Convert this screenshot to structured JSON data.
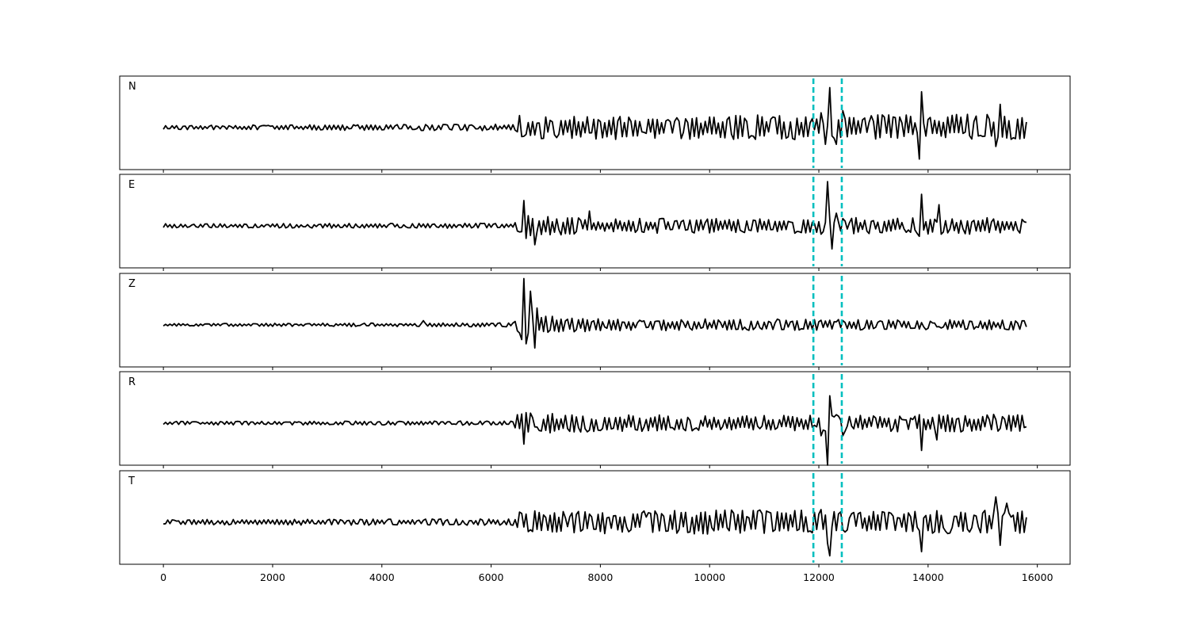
{
  "chart_data": {
    "type": "line",
    "title": "",
    "xlabel": "",
    "ylabel": "",
    "xlim": [
      -800,
      16600
    ],
    "xticks": [
      0,
      2000,
      4000,
      6000,
      8000,
      10000,
      12000,
      14000,
      16000
    ],
    "xtick_labels": [
      "0",
      "2000",
      "4000",
      "6000",
      "8000",
      "10000",
      "12000",
      "14000",
      "16000"
    ],
    "grid": false,
    "legend": "none",
    "sample_range": [
      0,
      15800
    ],
    "trace_color": "#000000",
    "marker_color": "#00bfbf",
    "markers": [
      11900,
      12420
    ],
    "panels": [
      {
        "label": "N",
        "ylim": [
          -1.0,
          1.0
        ],
        "noise": [
          [
            0,
            0.05
          ],
          [
            6400,
            0.08
          ],
          [
            6500,
            0.3
          ],
          [
            7200,
            0.26
          ],
          [
            8000,
            0.28
          ],
          [
            11000,
            0.3
          ],
          [
            13000,
            0.3
          ],
          [
            15800,
            0.32
          ]
        ],
        "key_points": [
          [
            11900,
            -0.05
          ],
          [
            12050,
            0.35
          ],
          [
            12100,
            -0.4
          ],
          [
            12150,
            0.05
          ],
          [
            12200,
            0.95
          ],
          [
            12250,
            -0.2
          ],
          [
            12330,
            -0.4
          ],
          [
            12420,
            0.4
          ],
          [
            13820,
            -0.2
          ],
          [
            13850,
            -0.75
          ],
          [
            13880,
            0.85
          ],
          [
            13920,
            0.1
          ],
          [
            15100,
            0.2
          ],
          [
            15250,
            -0.45
          ],
          [
            15330,
            0.55
          ],
          [
            15420,
            -0.25
          ]
        ]
      },
      {
        "label": "E",
        "ylim": [
          -1.0,
          1.0
        ],
        "noise": [
          [
            0,
            0.05
          ],
          [
            6400,
            0.06
          ],
          [
            6500,
            0.25
          ],
          [
            7200,
            0.22
          ],
          [
            8000,
            0.18
          ],
          [
            11000,
            0.18
          ],
          [
            13000,
            0.2
          ],
          [
            15800,
            0.2
          ]
        ],
        "key_points": [
          [
            6580,
            0.6
          ],
          [
            6650,
            -0.3
          ],
          [
            6780,
            -0.45
          ],
          [
            7800,
            0.35
          ],
          [
            11900,
            0.05
          ],
          [
            12050,
            -0.2
          ],
          [
            12150,
            1.05
          ],
          [
            12230,
            -0.55
          ],
          [
            12330,
            0.3
          ],
          [
            13850,
            -0.25
          ],
          [
            13880,
            0.75
          ],
          [
            13930,
            -0.1
          ],
          [
            14180,
            0.5
          ],
          [
            14250,
            -0.2
          ]
        ]
      },
      {
        "label": "Z",
        "ylim": [
          -1.0,
          1.0
        ],
        "noise": [
          [
            0,
            0.03
          ],
          [
            6400,
            0.05
          ],
          [
            6500,
            0.22
          ],
          [
            7200,
            0.2
          ],
          [
            8000,
            0.14
          ],
          [
            11000,
            0.14
          ],
          [
            13000,
            0.12
          ],
          [
            15800,
            0.12
          ]
        ],
        "key_points": [
          [
            4750,
            0.1
          ],
          [
            6550,
            -0.35
          ],
          [
            6580,
            1.1
          ],
          [
            6640,
            -0.45
          ],
          [
            6700,
            0.8
          ],
          [
            6780,
            -0.55
          ],
          [
            6840,
            0.4
          ]
        ]
      },
      {
        "label": "R",
        "ylim": [
          -1.0,
          1.0
        ],
        "noise": [
          [
            0,
            0.04
          ],
          [
            6400,
            0.05
          ],
          [
            6500,
            0.25
          ],
          [
            7200,
            0.25
          ],
          [
            8000,
            0.2
          ],
          [
            11000,
            0.18
          ],
          [
            13000,
            0.2
          ],
          [
            15800,
            0.22
          ]
        ],
        "key_points": [
          [
            6580,
            -0.5
          ],
          [
            6650,
            0.25
          ],
          [
            11900,
            -0.05
          ],
          [
            12050,
            -0.3
          ],
          [
            12140,
            -1.0
          ],
          [
            12200,
            0.65
          ],
          [
            12300,
            0.2
          ],
          [
            12420,
            -0.3
          ],
          [
            13850,
            0.2
          ],
          [
            13880,
            -0.65
          ],
          [
            13930,
            0.1
          ],
          [
            14170,
            -0.4
          ]
        ]
      },
      {
        "label": "T",
        "ylim": [
          -1.0,
          1.0
        ],
        "noise": [
          [
            0,
            0.06
          ],
          [
            6400,
            0.08
          ],
          [
            6500,
            0.3
          ],
          [
            7200,
            0.28
          ],
          [
            8000,
            0.28
          ],
          [
            11000,
            0.3
          ],
          [
            13000,
            0.26
          ],
          [
            15800,
            0.3
          ]
        ],
        "key_points": [
          [
            12050,
            0.3
          ],
          [
            12150,
            -0.5
          ],
          [
            12200,
            -0.8
          ],
          [
            12260,
            0.25
          ],
          [
            12330,
            -0.2
          ],
          [
            13830,
            -0.2
          ],
          [
            13860,
            0.85
          ],
          [
            13890,
            -0.7
          ],
          [
            13930,
            0.1
          ],
          [
            15250,
            0.6
          ],
          [
            15330,
            -0.55
          ],
          [
            15420,
            0.45
          ]
        ]
      }
    ]
  }
}
